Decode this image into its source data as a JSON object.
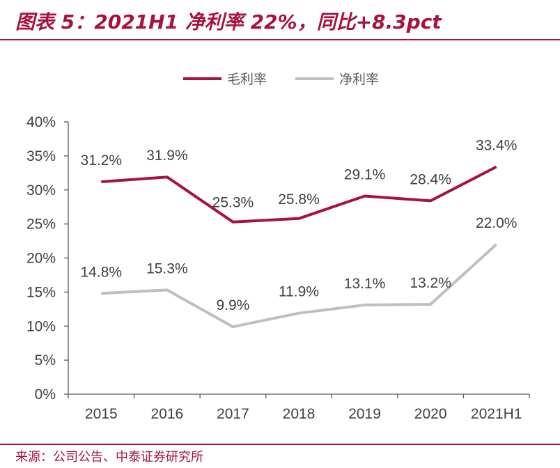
{
  "title": "图表 5：2021H1 净利率 22%，同比+8.3pct",
  "source": "来源：公司公告、中泰证券研究所",
  "chart_data": {
    "type": "line",
    "categories": [
      "2015",
      "2016",
      "2017",
      "2018",
      "2019",
      "2020",
      "2021H1"
    ],
    "ylim": [
      0,
      40
    ],
    "yticks": [
      0,
      5,
      10,
      15,
      20,
      25,
      30,
      35,
      40
    ],
    "ytick_labels": [
      "0%",
      "5%",
      "10%",
      "15%",
      "20%",
      "25%",
      "30%",
      "35%",
      "40%"
    ],
    "legend_position": "top-center",
    "grid": false,
    "series": [
      {
        "name": "毛利率",
        "color": "#a8123e",
        "values": [
          31.2,
          31.9,
          25.3,
          25.8,
          29.1,
          28.4,
          33.4
        ],
        "labels": [
          "31.2%",
          "31.9%",
          "25.3%",
          "25.8%",
          "29.1%",
          "28.4%",
          "33.4%"
        ]
      },
      {
        "name": "净利率",
        "color": "#bfbfbf",
        "values": [
          14.8,
          15.3,
          9.9,
          11.9,
          13.1,
          13.2,
          22.0
        ],
        "labels": [
          "14.8%",
          "15.3%",
          "9.9%",
          "11.9%",
          "13.1%",
          "13.2%",
          "22.0%"
        ]
      }
    ]
  }
}
